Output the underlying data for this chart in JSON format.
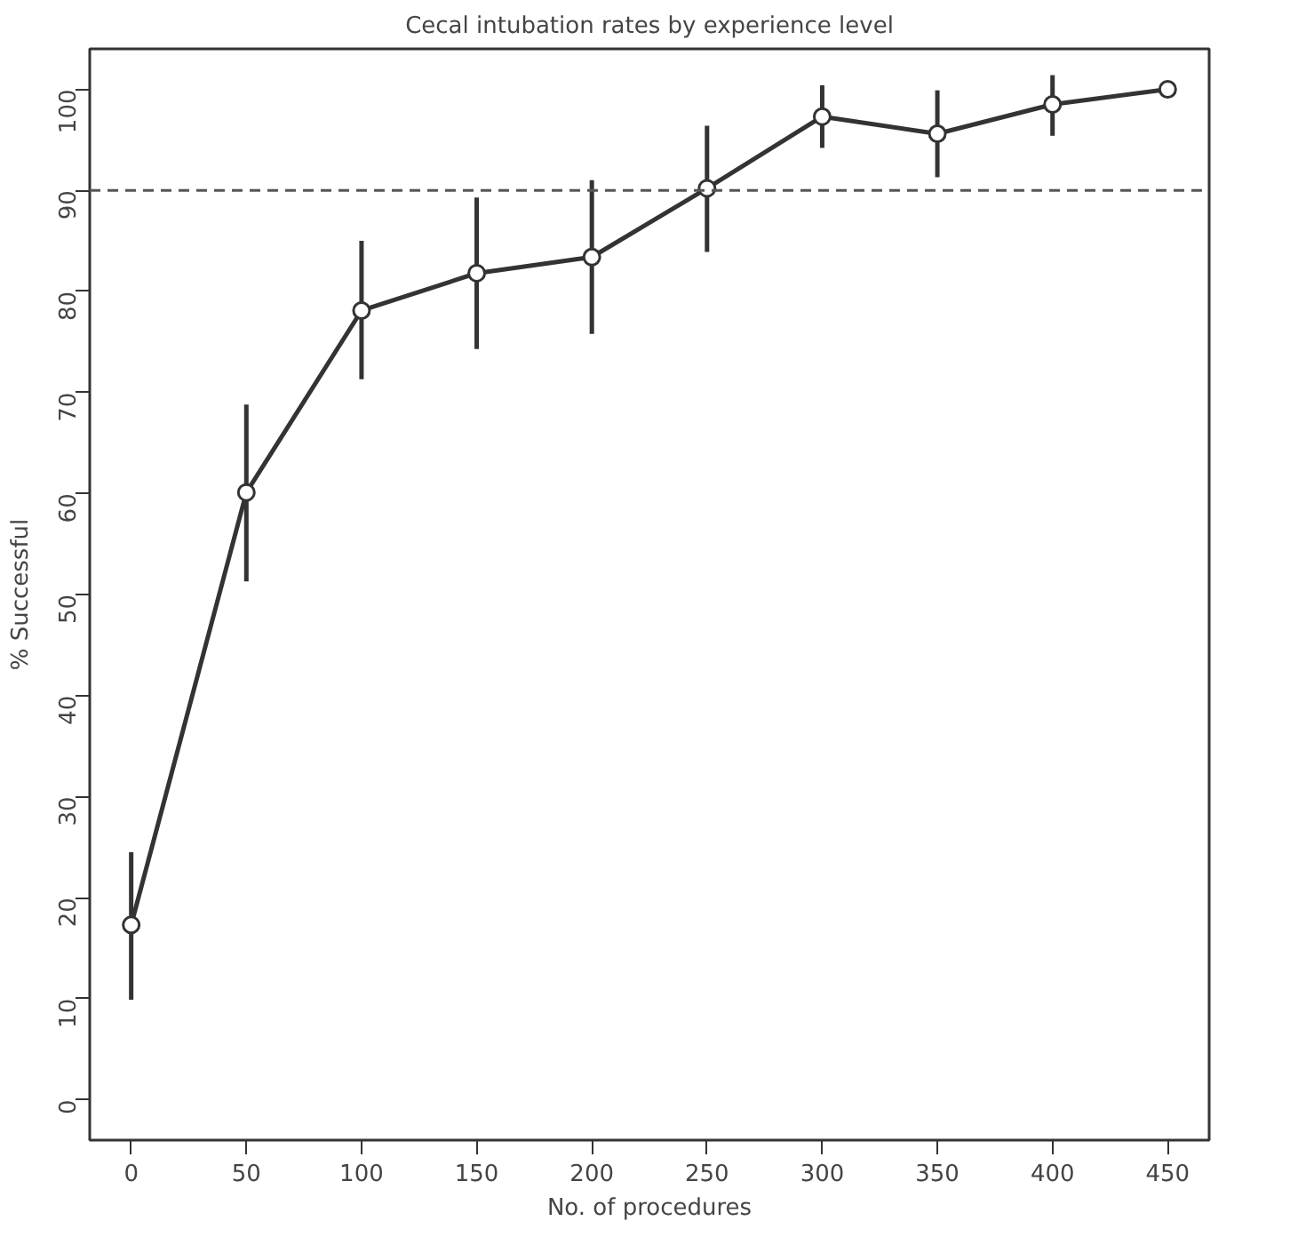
{
  "chart_data": {
    "type": "line",
    "title": "Cecal intubation rates by experience level",
    "xlabel": "No. of procedures",
    "ylabel": "% Successful",
    "x": [
      0,
      50,
      100,
      150,
      200,
      250,
      300,
      350,
      400,
      450
    ],
    "series": [
      {
        "color": "#333333",
        "values": [
          17.3,
          60.1,
          78.1,
          81.8,
          83.4,
          90.2,
          97.3,
          95.6,
          98.5,
          100
        ],
        "errors": [
          [
            9.9,
            24.5
          ],
          [
            51.3,
            68.8
          ],
          [
            71.3,
            85.0
          ],
          [
            74.3,
            89.3
          ],
          [
            75.8,
            91.0
          ],
          [
            83.9,
            96.4
          ],
          [
            94.2,
            100.4
          ],
          [
            91.3,
            99.9
          ],
          [
            95.4,
            101.4
          ],
          null
        ]
      }
    ],
    "xlim": [
      -18,
      468
    ],
    "ylim": [
      -4,
      104
    ],
    "xticks": [
      0,
      50,
      100,
      150,
      200,
      250,
      300,
      350,
      400,
      450
    ],
    "yticks": [
      0,
      10,
      20,
      30,
      40,
      50,
      60,
      70,
      80,
      90,
      100
    ],
    "ref_lines": [
      {
        "axis": "y",
        "value": 90,
        "line_style": "dashed",
        "color": "#555555"
      }
    ],
    "grid": false,
    "marker": "circle",
    "line_style": "solid"
  }
}
